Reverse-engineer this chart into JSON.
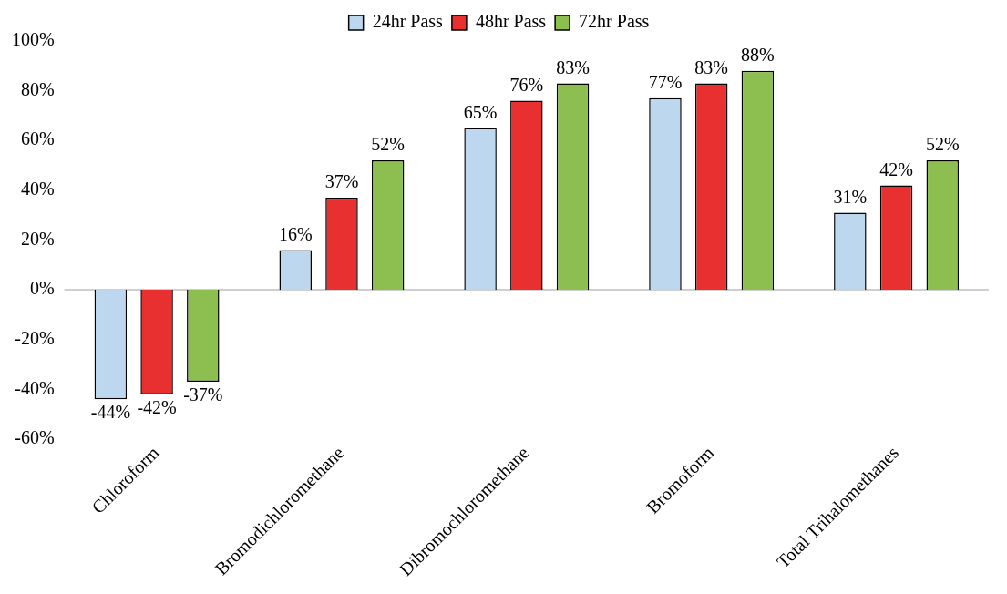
{
  "chart_data": {
    "type": "bar",
    "categories": [
      "Chloroform",
      "Bromodichloromethane",
      "Dibromochloromethane",
      "Bromoform",
      "Total Trihalomethanes"
    ],
    "series": [
      {
        "name": "24hr Pass",
        "color": "#bdd7ee",
        "values": [
          -44,
          16,
          65,
          77,
          31
        ],
        "value_labels": [
          "-44%",
          "16%",
          "65%",
          "77%",
          "31%"
        ]
      },
      {
        "name": "48hr Pass",
        "color": "#e83030",
        "values": [
          -42,
          37,
          76,
          83,
          42
        ],
        "value_labels": [
          "-42%",
          "37%",
          "76%",
          "83%",
          "42%"
        ]
      },
      {
        "name": "72hr Pass",
        "color": "#8cbf4f",
        "values": [
          -37,
          52,
          83,
          88,
          52
        ],
        "value_labels": [
          "-37%",
          "52%",
          "83%",
          "88%",
          "52%"
        ]
      }
    ],
    "ylim": [
      -60,
      100
    ],
    "yticks": [
      {
        "value": -60,
        "label": "-60%"
      },
      {
        "value": -40,
        "label": "-40%"
      },
      {
        "value": -20,
        "label": "-20%"
      },
      {
        "value": 0,
        "label": "0%"
      },
      {
        "value": 20,
        "label": "20%"
      },
      {
        "value": 40,
        "label": "40%"
      },
      {
        "value": 60,
        "label": "60%"
      },
      {
        "value": 80,
        "label": "80%"
      },
      {
        "value": 100,
        "label": "100%"
      }
    ],
    "ref_lines": [
      {
        "axis": "y",
        "value": 0,
        "color": "#bfbfbf"
      }
    ],
    "grid": false,
    "legend": "top"
  }
}
